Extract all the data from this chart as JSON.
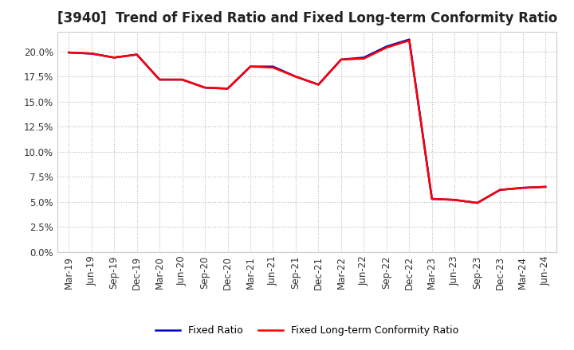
{
  "title": "[3940]  Trend of Fixed Ratio and Fixed Long-term Conformity Ratio",
  "x_labels": [
    "Mar-19",
    "Jun-19",
    "Sep-19",
    "Dec-19",
    "Mar-20",
    "Jun-20",
    "Sep-20",
    "Dec-20",
    "Mar-21",
    "Jun-21",
    "Sep-21",
    "Dec-21",
    "Mar-22",
    "Jun-22",
    "Sep-22",
    "Dec-22",
    "Mar-23",
    "Jun-23",
    "Sep-23",
    "Dec-23",
    "Mar-24",
    "Jun-24"
  ],
  "fixed_ratio": [
    0.199,
    0.198,
    0.194,
    0.197,
    0.172,
    0.172,
    0.164,
    0.163,
    0.185,
    0.185,
    0.175,
    0.167,
    0.192,
    0.194,
    0.205,
    0.212,
    0.053,
    0.052,
    0.049,
    0.062,
    0.064,
    0.065
  ],
  "fixed_lt_ratio": [
    0.199,
    0.198,
    0.194,
    0.197,
    0.172,
    0.172,
    0.164,
    0.163,
    0.185,
    0.184,
    0.175,
    0.167,
    0.192,
    0.193,
    0.204,
    0.211,
    0.053,
    0.052,
    0.049,
    0.062,
    0.064,
    0.065
  ],
  "fixed_ratio_color": "#0000cd",
  "fixed_lt_ratio_color": "#ff0000",
  "ylim_min": 0.0,
  "ylim_max": 0.22,
  "yticks": [
    0.0,
    0.025,
    0.05,
    0.075,
    0.1,
    0.125,
    0.15,
    0.175,
    0.2
  ],
  "ytick_labels": [
    "0.0%",
    "2.5%",
    "5.0%",
    "7.5%",
    "10.0%",
    "12.5%",
    "15.0%",
    "17.5%",
    "20.0%"
  ],
  "grid_color": "#bbbbbb",
  "background_color": "#ffffff",
  "plot_bg_color": "#ffffff",
  "legend_fixed_ratio": "Fixed Ratio",
  "legend_fixed_lt_ratio": "Fixed Long-term Conformity Ratio",
  "title_fontsize": 12,
  "axis_fontsize": 8.5,
  "line_width": 1.8
}
